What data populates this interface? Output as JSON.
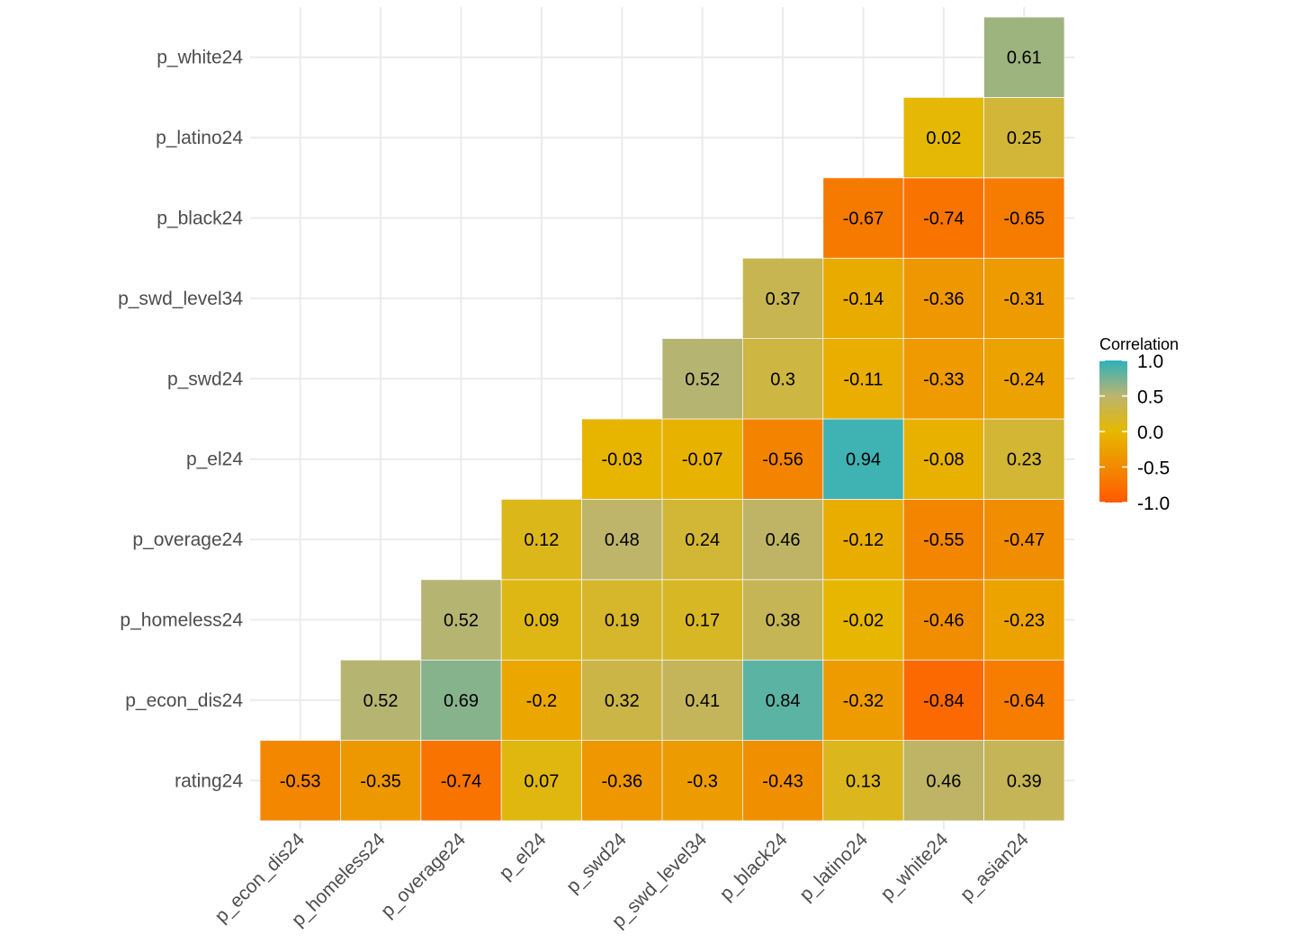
{
  "chart_data": {
    "type": "heatmap",
    "title": "",
    "xlabel": "",
    "ylabel": "",
    "x_categories": [
      "p_econ_dis24",
      "p_homeless24",
      "p_overage24",
      "p_el24",
      "p_swd24",
      "p_swd_level34",
      "p_black24",
      "p_latino24",
      "p_white24",
      "p_asian24"
    ],
    "y_categories": [
      "rating24",
      "p_econ_dis24",
      "p_homeless24",
      "p_overage24",
      "p_el24",
      "p_swd24",
      "p_swd_level34",
      "p_black24",
      "p_latino24",
      "p_white24"
    ],
    "cells": [
      {
        "x": "p_econ_dis24",
        "y": "rating24",
        "value": -0.53,
        "label": "-0.53"
      },
      {
        "x": "p_homeless24",
        "y": "rating24",
        "value": -0.35,
        "label": "-0.35"
      },
      {
        "x": "p_overage24",
        "y": "rating24",
        "value": -0.74,
        "label": "-0.74"
      },
      {
        "x": "p_el24",
        "y": "rating24",
        "value": 0.07,
        "label": "0.07"
      },
      {
        "x": "p_swd24",
        "y": "rating24",
        "value": -0.36,
        "label": "-0.36"
      },
      {
        "x": "p_swd_level34",
        "y": "rating24",
        "value": -0.3,
        "label": "-0.3"
      },
      {
        "x": "p_black24",
        "y": "rating24",
        "value": -0.43,
        "label": "-0.43"
      },
      {
        "x": "p_latino24",
        "y": "rating24",
        "value": 0.13,
        "label": "0.13"
      },
      {
        "x": "p_white24",
        "y": "rating24",
        "value": 0.46,
        "label": "0.46"
      },
      {
        "x": "p_asian24",
        "y": "rating24",
        "value": 0.39,
        "label": "0.39"
      },
      {
        "x": "p_homeless24",
        "y": "p_econ_dis24",
        "value": 0.52,
        "label": "0.52"
      },
      {
        "x": "p_overage24",
        "y": "p_econ_dis24",
        "value": 0.69,
        "label": "0.69"
      },
      {
        "x": "p_el24",
        "y": "p_econ_dis24",
        "value": -0.2,
        "label": "-0.2"
      },
      {
        "x": "p_swd24",
        "y": "p_econ_dis24",
        "value": 0.32,
        "label": "0.32"
      },
      {
        "x": "p_swd_level34",
        "y": "p_econ_dis24",
        "value": 0.41,
        "label": "0.41"
      },
      {
        "x": "p_black24",
        "y": "p_econ_dis24",
        "value": 0.84,
        "label": "0.84"
      },
      {
        "x": "p_latino24",
        "y": "p_econ_dis24",
        "value": -0.32,
        "label": "-0.32"
      },
      {
        "x": "p_white24",
        "y": "p_econ_dis24",
        "value": -0.84,
        "label": "-0.84"
      },
      {
        "x": "p_asian24",
        "y": "p_econ_dis24",
        "value": -0.64,
        "label": "-0.64"
      },
      {
        "x": "p_overage24",
        "y": "p_homeless24",
        "value": 0.52,
        "label": "0.52"
      },
      {
        "x": "p_el24",
        "y": "p_homeless24",
        "value": 0.09,
        "label": "0.09"
      },
      {
        "x": "p_swd24",
        "y": "p_homeless24",
        "value": 0.19,
        "label": "0.19"
      },
      {
        "x": "p_swd_level34",
        "y": "p_homeless24",
        "value": 0.17,
        "label": "0.17"
      },
      {
        "x": "p_black24",
        "y": "p_homeless24",
        "value": 0.38,
        "label": "0.38"
      },
      {
        "x": "p_latino24",
        "y": "p_homeless24",
        "value": -0.02,
        "label": "-0.02"
      },
      {
        "x": "p_white24",
        "y": "p_homeless24",
        "value": -0.46,
        "label": "-0.46"
      },
      {
        "x": "p_asian24",
        "y": "p_homeless24",
        "value": -0.23,
        "label": "-0.23"
      },
      {
        "x": "p_el24",
        "y": "p_overage24",
        "value": 0.12,
        "label": "0.12"
      },
      {
        "x": "p_swd24",
        "y": "p_overage24",
        "value": 0.48,
        "label": "0.48"
      },
      {
        "x": "p_swd_level34",
        "y": "p_overage24",
        "value": 0.24,
        "label": "0.24"
      },
      {
        "x": "p_black24",
        "y": "p_overage24",
        "value": 0.46,
        "label": "0.46"
      },
      {
        "x": "p_latino24",
        "y": "p_overage24",
        "value": -0.12,
        "label": "-0.12"
      },
      {
        "x": "p_white24",
        "y": "p_overage24",
        "value": -0.55,
        "label": "-0.55"
      },
      {
        "x": "p_asian24",
        "y": "p_overage24",
        "value": -0.47,
        "label": "-0.47"
      },
      {
        "x": "p_swd24",
        "y": "p_el24",
        "value": -0.03,
        "label": "-0.03"
      },
      {
        "x": "p_swd_level34",
        "y": "p_el24",
        "value": -0.07,
        "label": "-0.07"
      },
      {
        "x": "p_black24",
        "y": "p_el24",
        "value": -0.56,
        "label": "-0.56"
      },
      {
        "x": "p_latino24",
        "y": "p_el24",
        "value": 0.94,
        "label": "0.94"
      },
      {
        "x": "p_white24",
        "y": "p_el24",
        "value": -0.08,
        "label": "-0.08"
      },
      {
        "x": "p_asian24",
        "y": "p_el24",
        "value": 0.23,
        "label": "0.23"
      },
      {
        "x": "p_swd_level34",
        "y": "p_swd24",
        "value": 0.52,
        "label": "0.52"
      },
      {
        "x": "p_black24",
        "y": "p_swd24",
        "value": 0.3,
        "label": "0.3"
      },
      {
        "x": "p_latino24",
        "y": "p_swd24",
        "value": -0.11,
        "label": "-0.11"
      },
      {
        "x": "p_white24",
        "y": "p_swd24",
        "value": -0.33,
        "label": "-0.33"
      },
      {
        "x": "p_asian24",
        "y": "p_swd24",
        "value": -0.24,
        "label": "-0.24"
      },
      {
        "x": "p_black24",
        "y": "p_swd_level34",
        "value": 0.37,
        "label": "0.37"
      },
      {
        "x": "p_latino24",
        "y": "p_swd_level34",
        "value": -0.14,
        "label": "-0.14"
      },
      {
        "x": "p_white24",
        "y": "p_swd_level34",
        "value": -0.36,
        "label": "-0.36"
      },
      {
        "x": "p_asian24",
        "y": "p_swd_level34",
        "value": -0.31,
        "label": "-0.31"
      },
      {
        "x": "p_latino24",
        "y": "p_black24",
        "value": -0.67,
        "label": "-0.67"
      },
      {
        "x": "p_white24",
        "y": "p_black24",
        "value": -0.74,
        "label": "-0.74"
      },
      {
        "x": "p_asian24",
        "y": "p_black24",
        "value": -0.65,
        "label": "-0.65"
      },
      {
        "x": "p_white24",
        "y": "p_latino24",
        "value": 0.02,
        "label": "0.02"
      },
      {
        "x": "p_asian24",
        "y": "p_latino24",
        "value": 0.25,
        "label": "0.25"
      },
      {
        "x": "p_asian24",
        "y": "p_white24",
        "value": 0.61,
        "label": "0.61"
      }
    ],
    "legend": {
      "title": "Correlation",
      "ticks": [
        {
          "value": 1.0,
          "label": "1.0"
        },
        {
          "value": 0.5,
          "label": "0.5"
        },
        {
          "value": 0.0,
          "label": "0.0"
        },
        {
          "value": -0.5,
          "label": "-0.5"
        },
        {
          "value": -1.0,
          "label": "-1.0"
        }
      ],
      "range": [
        -1.0,
        1.0
      ],
      "placement": "right"
    },
    "colors": {
      "low": "#FF5A00",
      "mid_low": "#F28A00",
      "mid": "#E6B800",
      "mid_high": "#BCB46E",
      "high": "#2EB2BC",
      "grid": "#EBEBEB",
      "cell_border": "#F5F5F5"
    },
    "grid": true
  }
}
